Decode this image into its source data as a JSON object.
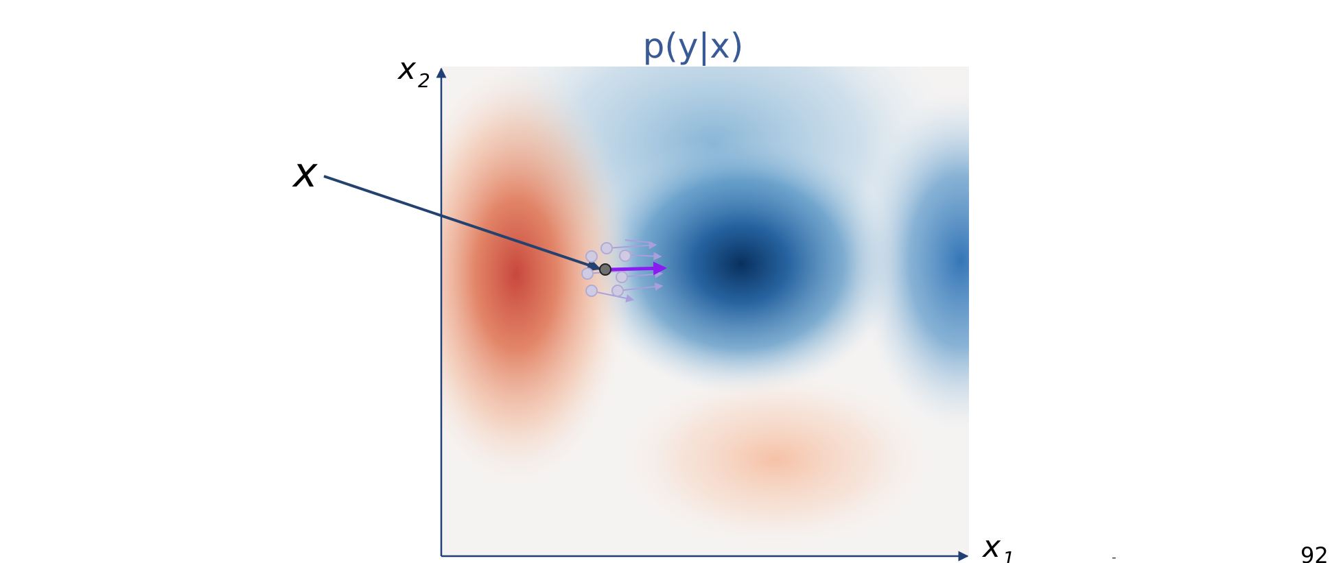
{
  "title": "p(y|x)",
  "x_axis_label": "x",
  "x_axis_subscript": "1",
  "y_axis_label": "x",
  "y_axis_subscript": "2",
  "point_label": "x",
  "page_number": "92",
  "footer_dash": "-",
  "colors": {
    "axis": "#1f3f75",
    "title": "#3a5a96",
    "pointer_arrow": "#24426f",
    "gradient_arrow": "#8a1cf2",
    "perturbed_arrow": "#a99fdd",
    "perturbed_point": "#cfcbe2",
    "main_point": "#707070",
    "positive_class": "#c8473d",
    "negative_class": "#08305e"
  },
  "icons": {
    "heatmap": "diverging-red-blue-heatmap",
    "pointer": "arrow-icon"
  }
}
